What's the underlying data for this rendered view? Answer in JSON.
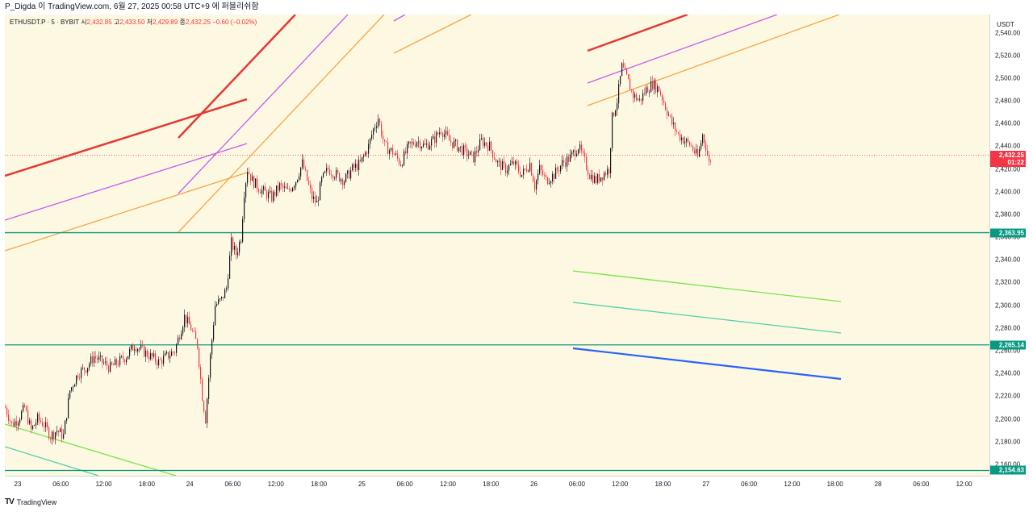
{
  "header": {
    "publish_info": "P_Digda 이 TradingView.com, 6월 27, 2025 00:58 UTC+9 에 퍼블리쉬함"
  },
  "legend": {
    "symbol": "ETHUSDT.P · 5 · BYBIT",
    "open_label": "시",
    "open": "2,432.85",
    "high_label": "고",
    "high": "2,433.50",
    "low_label": "저",
    "low": "2,429.89",
    "close_label": "종",
    "close": "2,432.25",
    "change": "−0.60 (−0.02%)"
  },
  "price_axis": {
    "unit": "USDT",
    "ticks": [
      "2,540.00",
      "2,520.00",
      "2,500.00",
      "2,480.00",
      "2,460.00",
      "2,440.00",
      "2,420.00",
      "2,400.00",
      "2,380.00",
      "2,360.00",
      "2,340.00",
      "2,320.00",
      "2,300.00",
      "2,280.00",
      "2,260.00",
      "2,240.00",
      "2,220.00",
      "2,200.00",
      "2,180.00",
      "2,160.00"
    ],
    "current_price": "2,432.25",
    "countdown": "01:22",
    "level_tags": [
      "2,363.95",
      "2,265.14",
      "2,154.63"
    ]
  },
  "time_axis": {
    "ticks": [
      "23",
      "06:00",
      "12:00",
      "18:00",
      "24",
      "06:00",
      "12:00",
      "18:00",
      "25",
      "06:00",
      "12:00",
      "18:00",
      "26",
      "06:00",
      "12:00",
      "18:00",
      "27",
      "06:00",
      "12:00",
      "18:00",
      "28",
      "06:00",
      "12:00"
    ]
  },
  "footer": {
    "brand": "TradingView",
    "logo_text": "TV"
  },
  "colors": {
    "bg": "#fdf8e1",
    "up": "#131722",
    "red": "#f23645",
    "green_level": "#089981",
    "orange": "#f7a545",
    "purple": "#c45cf0",
    "red_line": "#e53935",
    "lime": "#76e54a",
    "teal": "#4fd0b0",
    "blue": "#2962ff"
  },
  "chart_data": {
    "type": "candlestick",
    "title": "",
    "xlabel": "",
    "ylabel": "",
    "ylim": [
      2150,
      2556
    ],
    "x_categories": [
      "23",
      "06:00",
      "12:00",
      "18:00",
      "24",
      "06:00",
      "12:00",
      "18:00",
      "25",
      "06:00",
      "12:00",
      "18:00",
      "26",
      "06:00",
      "12:00",
      "18:00",
      "27",
      "06:00",
      "12:00",
      "18:00",
      "28",
      "06:00",
      "12:00"
    ],
    "price_path": [
      [
        0,
        2210
      ],
      [
        8,
        2195
      ],
      [
        16,
        2200
      ],
      [
        24,
        2210
      ],
      [
        32,
        2190
      ],
      [
        40,
        2200
      ],
      [
        48,
        2195
      ],
      [
        56,
        2185
      ],
      [
        64,
        2190
      ],
      [
        72,
        2185
      ],
      [
        80,
        2225
      ],
      [
        90,
        2240
      ],
      [
        100,
        2245
      ],
      [
        110,
        2255
      ],
      [
        120,
        2250
      ],
      [
        130,
        2245
      ],
      [
        140,
        2250
      ],
      [
        150,
        2255
      ],
      [
        160,
        2265
      ],
      [
        170,
        2260
      ],
      [
        180,
        2255
      ],
      [
        190,
        2250
      ],
      [
        200,
        2255
      ],
      [
        210,
        2260
      ],
      [
        222,
        2290
      ],
      [
        230,
        2280
      ],
      [
        238,
        2265
      ],
      [
        244,
        2220
      ],
      [
        248,
        2200
      ],
      [
        254,
        2255
      ],
      [
        260,
        2300
      ],
      [
        268,
        2305
      ],
      [
        274,
        2315
      ],
      [
        280,
        2355
      ],
      [
        286,
        2345
      ],
      [
        292,
        2360
      ],
      [
        296,
        2400
      ],
      [
        300,
        2420
      ],
      [
        306,
        2410
      ],
      [
        312,
        2405
      ],
      [
        320,
        2400
      ],
      [
        330,
        2395
      ],
      [
        340,
        2405
      ],
      [
        350,
        2400
      ],
      [
        360,
        2410
      ],
      [
        368,
        2425
      ],
      [
        374,
        2410
      ],
      [
        380,
        2395
      ],
      [
        386,
        2390
      ],
      [
        392,
        2410
      ],
      [
        400,
        2420
      ],
      [
        410,
        2415
      ],
      [
        420,
        2410
      ],
      [
        430,
        2420
      ],
      [
        440,
        2425
      ],
      [
        450,
        2440
      ],
      [
        456,
        2455
      ],
      [
        462,
        2465
      ],
      [
        470,
        2440
      ],
      [
        480,
        2435
      ],
      [
        490,
        2425
      ],
      [
        500,
        2440
      ],
      [
        510,
        2445
      ],
      [
        520,
        2440
      ],
      [
        530,
        2445
      ],
      [
        540,
        2455
      ],
      [
        550,
        2445
      ],
      [
        560,
        2440
      ],
      [
        570,
        2435
      ],
      [
        580,
        2430
      ],
      [
        590,
        2445
      ],
      [
        600,
        2440
      ],
      [
        610,
        2425
      ],
      [
        620,
        2420
      ],
      [
        630,
        2425
      ],
      [
        640,
        2415
      ],
      [
        650,
        2425
      ],
      [
        656,
        2405
      ],
      [
        662,
        2420
      ],
      [
        670,
        2410
      ],
      [
        680,
        2415
      ],
      [
        690,
        2425
      ],
      [
        700,
        2430
      ],
      [
        710,
        2440
      ],
      [
        716,
        2430
      ],
      [
        724,
        2415
      ],
      [
        732,
        2410
      ],
      [
        740,
        2415
      ],
      [
        748,
        2420
      ],
      [
        752,
        2465
      ],
      [
        758,
        2480
      ],
      [
        764,
        2510
      ],
      [
        770,
        2500
      ],
      [
        778,
        2485
      ],
      [
        786,
        2480
      ],
      [
        794,
        2490
      ],
      [
        802,
        2495
      ],
      [
        810,
        2490
      ],
      [
        818,
        2475
      ],
      [
        826,
        2460
      ],
      [
        834,
        2450
      ],
      [
        842,
        2445
      ],
      [
        850,
        2440
      ],
      [
        858,
        2430
      ],
      [
        864,
        2450
      ],
      [
        868,
        2440
      ],
      [
        872,
        2425
      ],
      [
        876,
        2432
      ]
    ],
    "horizontal_levels": [
      2363.95,
      2265.14,
      2154.63
    ],
    "current_price": 2432.25
  }
}
